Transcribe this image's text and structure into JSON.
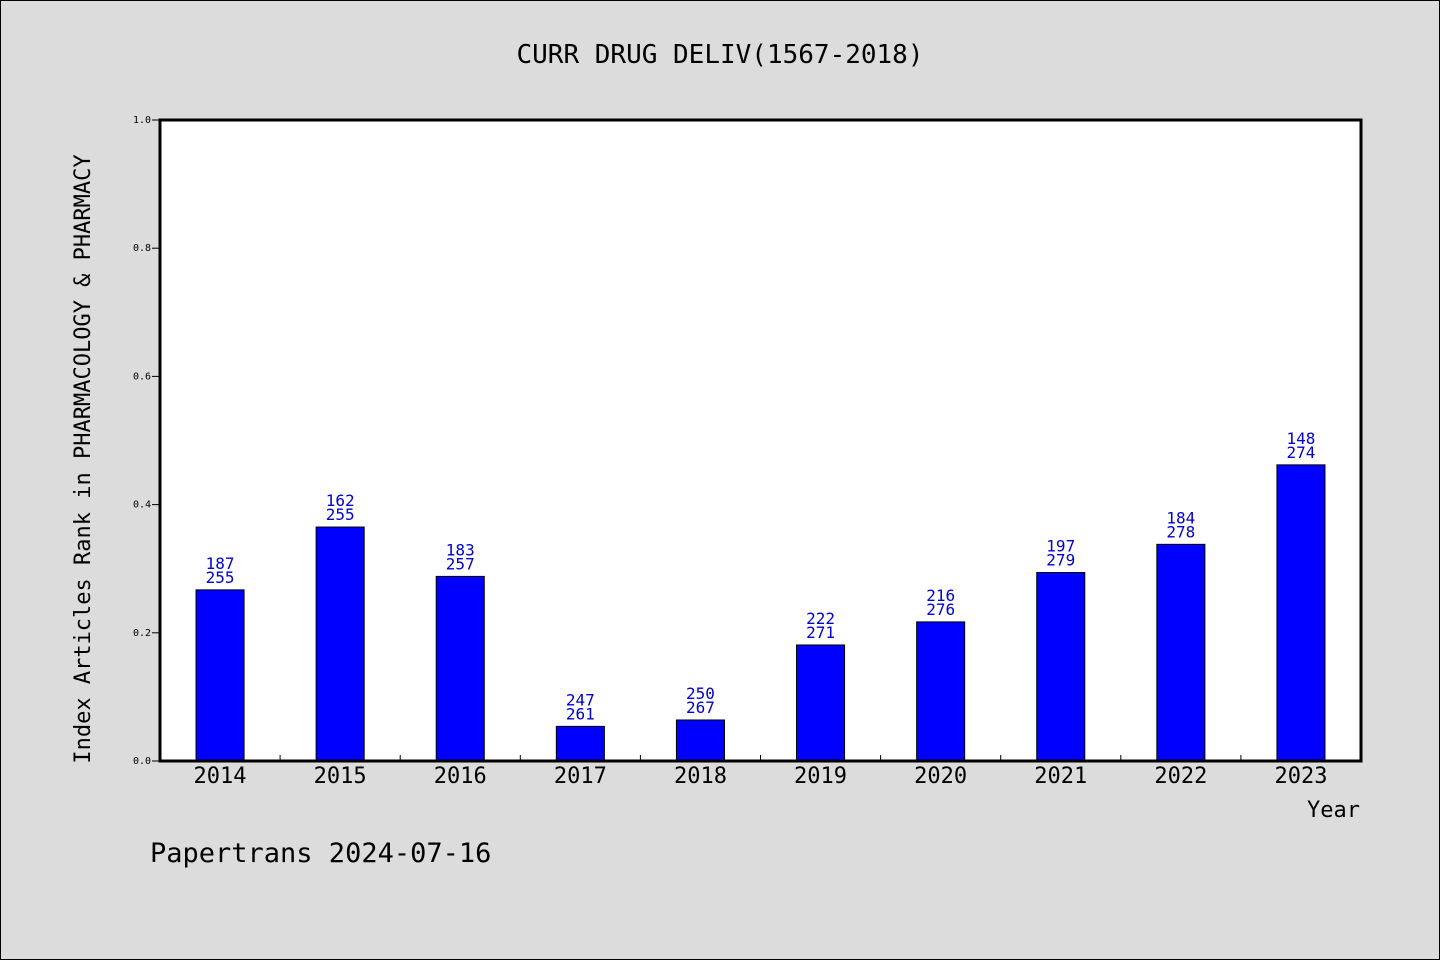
{
  "chart_data": {
    "type": "bar",
    "title": "CURR DRUG DELIV(1567-2018)",
    "ylabel": "Index Articles Rank in PHARMACOLOGY & PHARMACY",
    "xlabel": "Year",
    "ylim": [
      0,
      1.0
    ],
    "yticks": [
      "0.0",
      "0.2",
      "0.4",
      "0.6",
      "0.8",
      "1.0"
    ],
    "categories": [
      "2014",
      "2015",
      "2016",
      "2017",
      "2018",
      "2019",
      "2020",
      "2021",
      "2022",
      "2023"
    ],
    "values": [
      0.267,
      0.365,
      0.288,
      0.054,
      0.064,
      0.181,
      0.217,
      0.294,
      0.338,
      0.462
    ],
    "labels_top": [
      "187",
      "162",
      "183",
      "247",
      "250",
      "222",
      "216",
      "197",
      "184",
      "148"
    ],
    "labels_bottom": [
      "255",
      "255",
      "257",
      "261",
      "267",
      "271",
      "276",
      "279",
      "278",
      "274"
    ],
    "bar_color": "#0000ff",
    "label_color": "#0000cc",
    "grid": false,
    "legend": "none"
  },
  "footer": "Papertrans 2024-07-16"
}
